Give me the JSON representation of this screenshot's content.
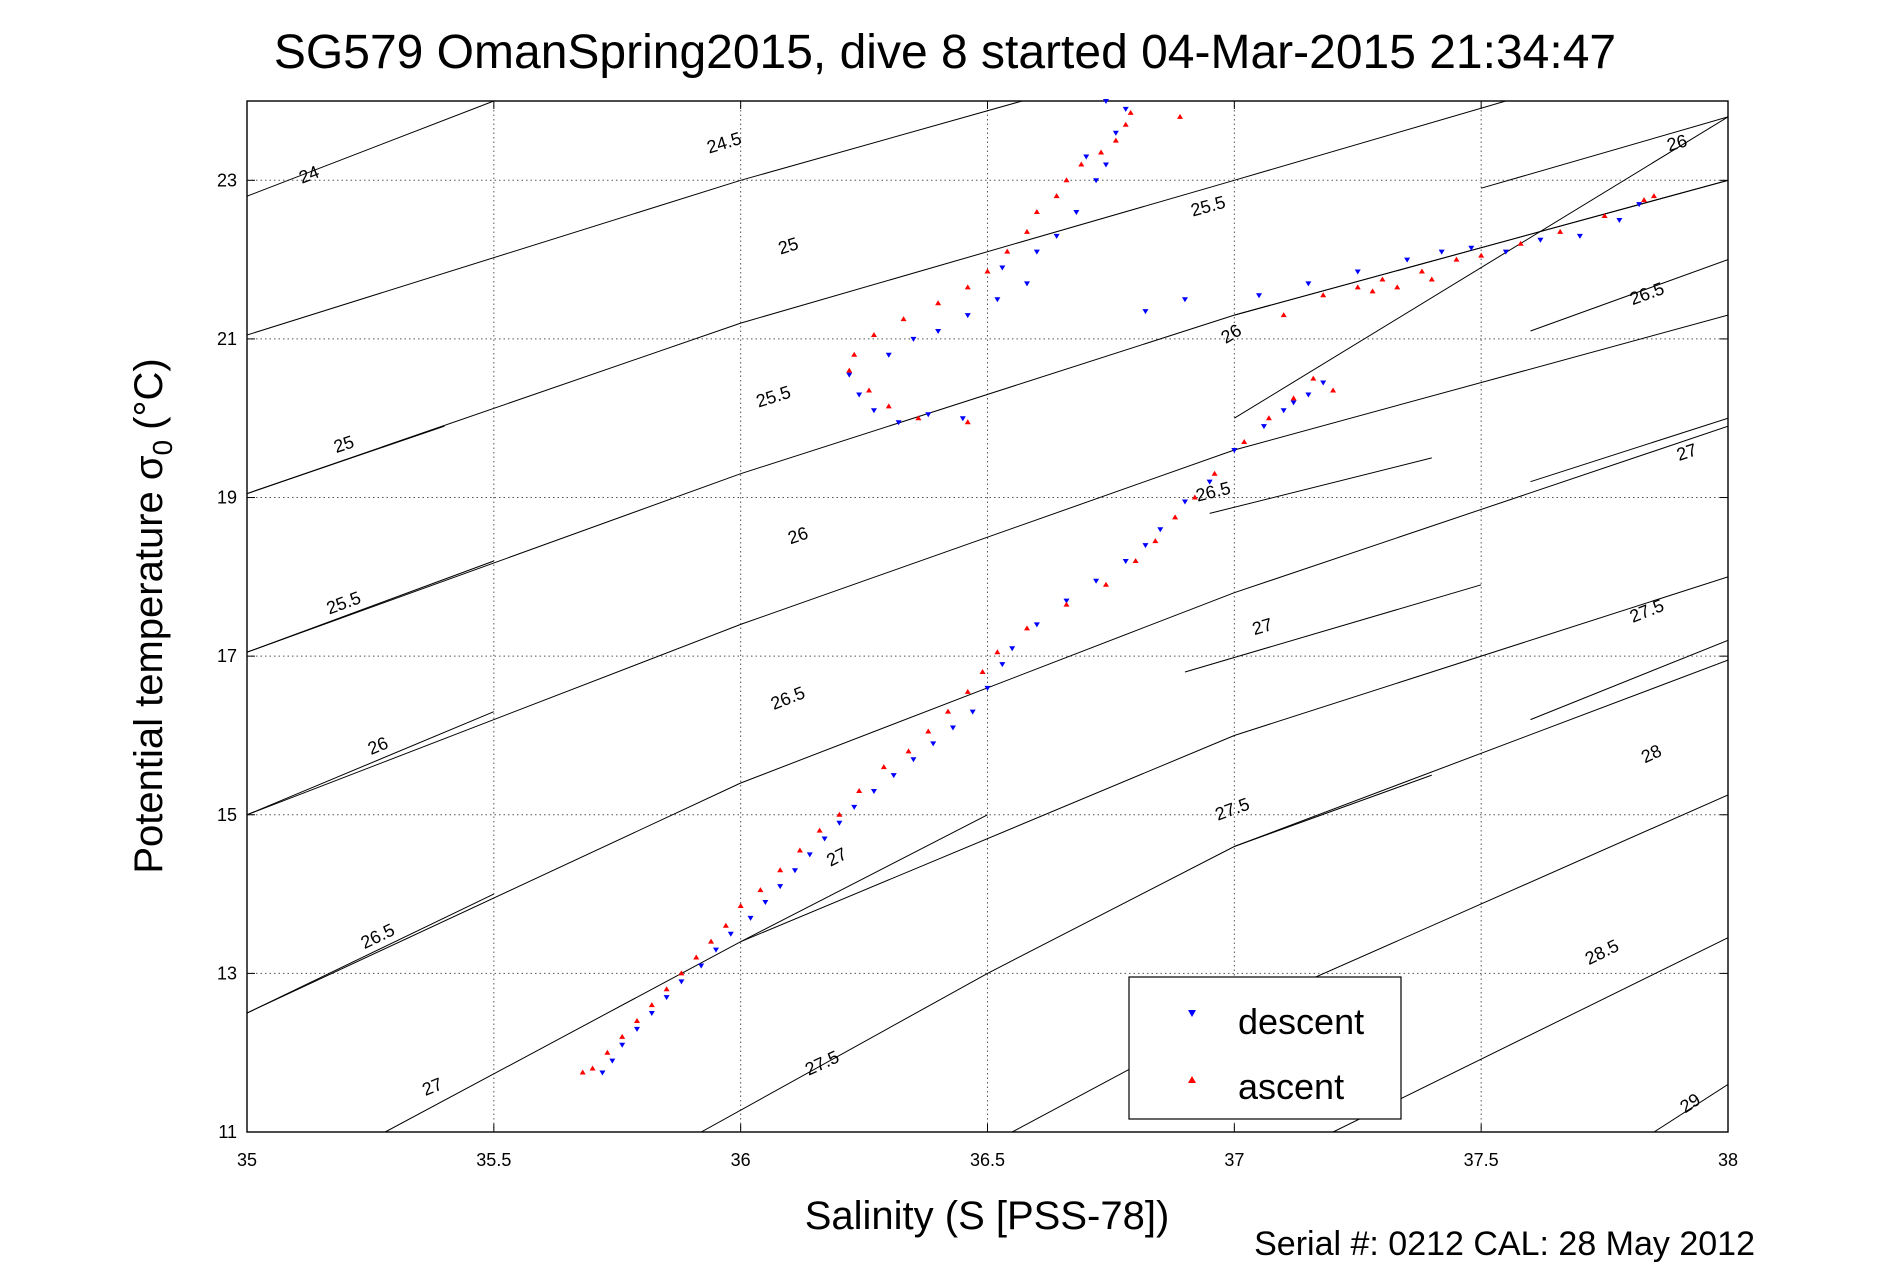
{
  "chart_data": {
    "type": "scatter",
    "title": "SG579 OmanSpring2015, dive 8 started 04-Mar-2015 21:34:47",
    "xlabel": "Salinity (S [PSS-78])",
    "ylabel_main": "Potential temperature σ",
    "ylabel_sub": "0",
    "ylabel_unit": "(°C)",
    "footer": "Serial #: 0212  CAL: 28 May 2012",
    "xlim": [
      35,
      38
    ],
    "ylim": [
      11,
      24
    ],
    "xticks": [
      35,
      35.5,
      36,
      36.5,
      37,
      37.5,
      38
    ],
    "xtick_labels": [
      "35",
      "35.5",
      "36",
      "36.5",
      "37",
      "37.5",
      "38"
    ],
    "yticks": [
      11,
      13,
      15,
      17,
      19,
      21,
      23
    ],
    "ytick_labels": [
      "11",
      "13",
      "15",
      "17",
      "19",
      "21",
      "23"
    ],
    "grid": true,
    "legend_position": "bottom-right",
    "series": [
      {
        "name": "descent",
        "color": "#0000ff",
        "marker": "triangle-down",
        "points": [
          [
            35.72,
            11.75
          ],
          [
            35.74,
            11.9
          ],
          [
            35.76,
            12.1
          ],
          [
            35.79,
            12.3
          ],
          [
            35.82,
            12.5
          ],
          [
            35.85,
            12.7
          ],
          [
            35.88,
            12.9
          ],
          [
            35.92,
            13.1
          ],
          [
            35.95,
            13.3
          ],
          [
            35.98,
            13.5
          ],
          [
            36.02,
            13.7
          ],
          [
            36.05,
            13.9
          ],
          [
            36.08,
            14.1
          ],
          [
            36.11,
            14.3
          ],
          [
            36.14,
            14.5
          ],
          [
            36.17,
            14.7
          ],
          [
            36.2,
            14.9
          ],
          [
            36.23,
            15.1
          ],
          [
            36.27,
            15.3
          ],
          [
            36.31,
            15.5
          ],
          [
            36.35,
            15.7
          ],
          [
            36.39,
            15.9
          ],
          [
            36.43,
            16.1
          ],
          [
            36.47,
            16.3
          ],
          [
            36.5,
            16.6
          ],
          [
            36.53,
            16.9
          ],
          [
            36.55,
            17.1
          ],
          [
            36.6,
            17.4
          ],
          [
            36.66,
            17.7
          ],
          [
            36.72,
            17.95
          ],
          [
            36.78,
            18.2
          ],
          [
            36.82,
            18.4
          ],
          [
            36.85,
            18.6
          ],
          [
            36.9,
            18.95
          ],
          [
            36.95,
            19.2
          ],
          [
            37.0,
            19.6
          ],
          [
            37.06,
            19.9
          ],
          [
            37.1,
            20.1
          ],
          [
            37.15,
            20.3
          ],
          [
            37.18,
            20.45
          ],
          [
            37.12,
            20.2
          ],
          [
            36.22,
            20.55
          ],
          [
            36.24,
            20.3
          ],
          [
            36.27,
            20.1
          ],
          [
            36.32,
            19.95
          ],
          [
            36.38,
            20.05
          ],
          [
            36.45,
            20.0
          ],
          [
            36.3,
            20.8
          ],
          [
            36.35,
            21.0
          ],
          [
            36.4,
            21.1
          ],
          [
            36.46,
            21.3
          ],
          [
            36.52,
            21.5
          ],
          [
            36.58,
            21.7
          ],
          [
            36.53,
            21.9
          ],
          [
            36.6,
            22.1
          ],
          [
            36.64,
            22.3
          ],
          [
            36.68,
            22.6
          ],
          [
            36.72,
            23.0
          ],
          [
            36.74,
            23.2
          ],
          [
            36.7,
            23.3
          ],
          [
            36.76,
            23.6
          ],
          [
            36.78,
            23.9
          ],
          [
            36.74,
            24.0
          ],
          [
            36.82,
            21.35
          ],
          [
            36.9,
            21.5
          ],
          [
            37.05,
            21.55
          ],
          [
            37.15,
            21.7
          ],
          [
            37.25,
            21.85
          ],
          [
            37.35,
            22.0
          ],
          [
            37.42,
            22.1
          ],
          [
            37.48,
            22.15
          ],
          [
            37.55,
            22.1
          ],
          [
            37.62,
            22.25
          ],
          [
            37.7,
            22.3
          ],
          [
            37.78,
            22.5
          ],
          [
            37.82,
            22.7
          ]
        ]
      },
      {
        "name": "ascent",
        "color": "#ff0000",
        "marker": "triangle-up",
        "points": [
          [
            35.68,
            11.75
          ],
          [
            35.7,
            11.8
          ],
          [
            35.73,
            12.0
          ],
          [
            35.76,
            12.2
          ],
          [
            35.79,
            12.4
          ],
          [
            35.82,
            12.6
          ],
          [
            35.85,
            12.8
          ],
          [
            35.88,
            13.0
          ],
          [
            35.91,
            13.2
          ],
          [
            35.94,
            13.4
          ],
          [
            35.97,
            13.6
          ],
          [
            36.0,
            13.85
          ],
          [
            36.04,
            14.05
          ],
          [
            36.08,
            14.3
          ],
          [
            36.12,
            14.55
          ],
          [
            36.16,
            14.8
          ],
          [
            36.2,
            15.0
          ],
          [
            36.24,
            15.3
          ],
          [
            36.29,
            15.6
          ],
          [
            36.34,
            15.8
          ],
          [
            36.38,
            16.05
          ],
          [
            36.42,
            16.3
          ],
          [
            36.46,
            16.55
          ],
          [
            36.49,
            16.8
          ],
          [
            36.52,
            17.05
          ],
          [
            36.58,
            17.35
          ],
          [
            36.66,
            17.65
          ],
          [
            36.74,
            17.9
          ],
          [
            36.8,
            18.2
          ],
          [
            36.84,
            18.45
          ],
          [
            36.88,
            18.75
          ],
          [
            36.92,
            19.0
          ],
          [
            36.96,
            19.3
          ],
          [
            37.02,
            19.7
          ],
          [
            37.07,
            20.0
          ],
          [
            37.12,
            20.25
          ],
          [
            37.16,
            20.5
          ],
          [
            37.2,
            20.35
          ],
          [
            36.22,
            20.6
          ],
          [
            36.26,
            20.35
          ],
          [
            36.3,
            20.15
          ],
          [
            36.36,
            20.0
          ],
          [
            36.46,
            19.95
          ],
          [
            36.23,
            20.8
          ],
          [
            36.27,
            21.05
          ],
          [
            36.33,
            21.25
          ],
          [
            36.4,
            21.45
          ],
          [
            36.46,
            21.65
          ],
          [
            36.5,
            21.85
          ],
          [
            36.54,
            22.1
          ],
          [
            36.58,
            22.35
          ],
          [
            36.6,
            22.6
          ],
          [
            36.64,
            22.8
          ],
          [
            36.66,
            23.0
          ],
          [
            36.69,
            23.2
          ],
          [
            36.73,
            23.35
          ],
          [
            36.76,
            23.5
          ],
          [
            36.78,
            23.7
          ],
          [
            36.79,
            23.85
          ],
          [
            36.89,
            23.8
          ],
          [
            37.1,
            21.3
          ],
          [
            37.18,
            21.55
          ],
          [
            37.25,
            21.65
          ],
          [
            37.3,
            21.75
          ],
          [
            37.38,
            21.85
          ],
          [
            37.45,
            22.0
          ],
          [
            37.5,
            22.05
          ],
          [
            37.58,
            22.2
          ],
          [
            37.66,
            22.35
          ],
          [
            37.75,
            22.55
          ],
          [
            37.83,
            22.75
          ],
          [
            37.85,
            22.8
          ],
          [
            37.28,
            21.6
          ],
          [
            37.33,
            21.65
          ],
          [
            37.4,
            21.75
          ]
        ]
      }
    ],
    "contours": [
      {
        "label": "24",
        "points": [
          [
            35.0,
            22.8
          ],
          [
            35.5,
            24.0
          ]
        ],
        "label_at": [
          35.13,
          23.0
        ]
      },
      {
        "label": "24.5",
        "points": [
          [
            35.0,
            21.05
          ],
          [
            36.0,
            23.0
          ],
          [
            36.57,
            24.0
          ]
        ],
        "label_at": [
          35.97,
          23.4
        ]
      },
      {
        "label": "25",
        "points": [
          [
            35.0,
            19.05
          ],
          [
            36.0,
            21.2
          ],
          [
            37.0,
            23.0
          ],
          [
            37.55,
            24.0
          ]
        ],
        "label_at": [
          36.1,
          22.1
        ]
      },
      {
        "label": "25",
        "points": [
          [
            35.0,
            19.05
          ],
          [
            35.4,
            19.9
          ]
        ],
        "label_at": [
          35.2,
          19.6
        ]
      },
      {
        "label": "25.5",
        "points": [
          [
            35.0,
            17.05
          ],
          [
            36.0,
            19.3
          ],
          [
            37.0,
            21.3
          ],
          [
            38.0,
            23.0
          ]
        ],
        "label_at": [
          36.07,
          20.2
        ]
      },
      {
        "label": "25.5",
        "points": [
          [
            35.0,
            17.05
          ],
          [
            35.5,
            18.2
          ]
        ],
        "label_at": [
          35.2,
          17.6
        ]
      },
      {
        "label": "25.5",
        "points": [
          [
            37.0,
            21.3
          ],
          [
            38.0,
            23.0
          ]
        ],
        "label_at": [
          36.95,
          22.6
        ]
      },
      {
        "label": "26",
        "points": [
          [
            35.0,
            15.0
          ],
          [
            36.0,
            17.4
          ],
          [
            37.0,
            19.6
          ],
          [
            38.0,
            21.3
          ]
        ],
        "label_at": [
          36.12,
          18.45
        ]
      },
      {
        "label": "26",
        "points": [
          [
            35.0,
            15.0
          ],
          [
            35.5,
            16.3
          ]
        ],
        "label_at": [
          35.27,
          15.8
        ]
      },
      {
        "label": "26",
        "points": [
          [
            37.0,
            20.0
          ],
          [
            38.0,
            23.8
          ]
        ],
        "label_at": [
          37.0,
          21.0
        ]
      },
      {
        "label": "26",
        "points": [
          [
            37.5,
            22.9
          ],
          [
            38.0,
            23.8
          ]
        ],
        "label_at": [
          37.9,
          23.4
        ]
      },
      {
        "label": "26.5",
        "points": [
          [
            35.0,
            12.5
          ],
          [
            36.0,
            15.4
          ],
          [
            37.0,
            17.8
          ],
          [
            38.0,
            19.9
          ]
        ],
        "label_at": [
          36.1,
          16.4
        ]
      },
      {
        "label": "26.5",
        "points": [
          [
            35.0,
            12.5
          ],
          [
            35.5,
            14.0
          ]
        ],
        "label_at": [
          35.27,
          13.4
        ]
      },
      {
        "label": "26.5",
        "points": [
          [
            36.95,
            18.8
          ],
          [
            37.4,
            19.5
          ]
        ],
        "label_at": [
          36.96,
          19.0
        ]
      },
      {
        "label": "26.5",
        "points": [
          [
            37.6,
            21.1
          ],
          [
            38.0,
            22.0
          ]
        ],
        "label_at": [
          37.84,
          21.5
        ]
      },
      {
        "label": "27",
        "points": [
          [
            35.28,
            11.0
          ],
          [
            36.0,
            13.4
          ],
          [
            37.0,
            16.0
          ],
          [
            38.0,
            18.0
          ]
        ],
        "label_at": [
          35.38,
          11.5
        ]
      },
      {
        "label": "27",
        "points": [
          [
            36.0,
            13.4
          ],
          [
            36.5,
            15.0
          ]
        ],
        "label_at": [
          36.2,
          14.4
        ]
      },
      {
        "label": "27",
        "points": [
          [
            36.9,
            16.8
          ],
          [
            37.5,
            17.9
          ]
        ],
        "label_at": [
          37.06,
          17.3
        ]
      },
      {
        "label": "27",
        "points": [
          [
            37.6,
            19.2
          ],
          [
            38.0,
            20.0
          ]
        ],
        "label_at": [
          37.92,
          19.5
        ]
      },
      {
        "label": "27.5",
        "points": [
          [
            35.92,
            11.0
          ],
          [
            36.5,
            13.0
          ],
          [
            37.0,
            14.6
          ],
          [
            38.0,
            16.95
          ]
        ],
        "label_at": [
          36.17,
          11.8
        ]
      },
      {
        "label": "27.5",
        "points": [
          [
            37.0,
            14.6
          ],
          [
            37.4,
            15.5
          ]
        ],
        "label_at": [
          37.0,
          15.0
        ]
      },
      {
        "label": "27.5",
        "points": [
          [
            37.6,
            16.2
          ],
          [
            38.0,
            17.2
          ]
        ],
        "label_at": [
          37.84,
          17.5
        ]
      },
      {
        "label": "28",
        "points": [
          [
            36.55,
            11.0
          ],
          [
            37.0,
            12.5
          ],
          [
            38.0,
            15.25
          ]
        ],
        "label_at": [
          37.85,
          15.7
        ]
      },
      {
        "label": "28.5",
        "points": [
          [
            37.2,
            11.0
          ],
          [
            38.0,
            13.45
          ]
        ],
        "label_at": [
          37.75,
          13.2
        ]
      },
      {
        "label": "29",
        "points": [
          [
            37.85,
            11.0
          ],
          [
            38.0,
            11.6
          ]
        ],
        "label_at": [
          37.93,
          11.3
        ]
      }
    ]
  }
}
